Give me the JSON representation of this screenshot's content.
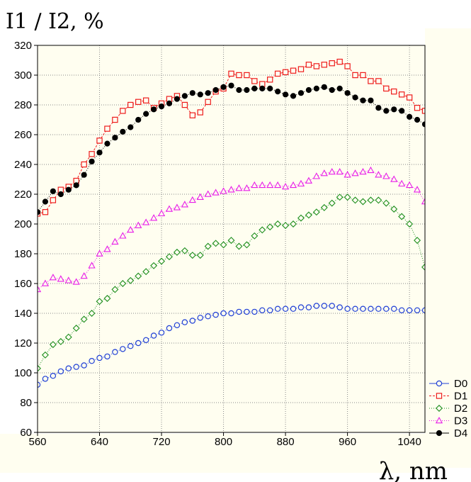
{
  "chart_data": {
    "type": "scatter",
    "title": "",
    "ylabel": "I1 / I2, %",
    "xlabel": "λ, nm",
    "xlim": [
      560,
      1060
    ],
    "ylim": [
      60,
      320
    ],
    "xticks": [
      560,
      640,
      720,
      800,
      880,
      960,
      1040
    ],
    "yticks": [
      60,
      80,
      100,
      120,
      140,
      160,
      180,
      200,
      220,
      240,
      260,
      280,
      300,
      320
    ],
    "grid": true,
    "legend_position": "right-bottom",
    "colors": {
      "plot_background": "#fffef0",
      "grid": "#8a8a8a"
    },
    "series": [
      {
        "name": "D0",
        "color": "#1f3fd6",
        "marker": "circle-open",
        "line": "dotted",
        "x": [
          560,
          570,
          580,
          590,
          600,
          610,
          620,
          630,
          640,
          650,
          660,
          670,
          680,
          690,
          700,
          710,
          720,
          730,
          740,
          750,
          760,
          770,
          780,
          790,
          800,
          810,
          820,
          830,
          840,
          850,
          860,
          870,
          880,
          890,
          900,
          910,
          920,
          930,
          940,
          950,
          960,
          970,
          980,
          990,
          1000,
          1010,
          1020,
          1030,
          1040,
          1050,
          1060
        ],
        "y": [
          92,
          96,
          98,
          101,
          103,
          104,
          105,
          108,
          110,
          111,
          114,
          116,
          118,
          120,
          122,
          125,
          127,
          130,
          132,
          134,
          135,
          137,
          138,
          139,
          140,
          140,
          141,
          141,
          141,
          142,
          142,
          143,
          143,
          143,
          144,
          144,
          145,
          145,
          145,
          144,
          143,
          143,
          143,
          143,
          143,
          143,
          143,
          142,
          142,
          142,
          142
        ]
      },
      {
        "name": "D1",
        "color": "#ee1c1c",
        "marker": "square-open",
        "line": "dashed",
        "x": [
          560,
          570,
          580,
          590,
          600,
          610,
          620,
          630,
          640,
          650,
          660,
          670,
          680,
          690,
          700,
          710,
          720,
          730,
          740,
          750,
          760,
          770,
          780,
          790,
          800,
          810,
          820,
          830,
          840,
          850,
          860,
          870,
          880,
          890,
          900,
          910,
          920,
          930,
          940,
          950,
          960,
          970,
          980,
          990,
          1000,
          1010,
          1020,
          1030,
          1040,
          1050,
          1060
        ],
        "y": [
          207,
          208,
          216,
          223,
          225,
          229,
          240,
          247,
          256,
          264,
          270,
          276,
          280,
          282,
          283,
          278,
          281,
          284,
          286,
          280,
          273,
          275,
          282,
          289,
          291,
          301,
          300,
          300,
          296,
          294,
          297,
          301,
          302,
          303,
          304,
          307,
          306,
          307,
          308,
          309,
          306,
          300,
          300,
          296,
          296,
          291,
          289,
          287,
          285,
          278,
          276
        ]
      },
      {
        "name": "D2",
        "color": "#1f8f1f",
        "marker": "diamond-open",
        "line": "dotted",
        "x": [
          560,
          570,
          580,
          590,
          600,
          610,
          620,
          630,
          640,
          650,
          660,
          670,
          680,
          690,
          700,
          710,
          720,
          730,
          740,
          750,
          760,
          770,
          780,
          790,
          800,
          810,
          820,
          830,
          840,
          850,
          860,
          870,
          880,
          890,
          900,
          910,
          920,
          930,
          940,
          950,
          960,
          970,
          980,
          990,
          1000,
          1010,
          1020,
          1030,
          1040,
          1050,
          1060
        ],
        "y": [
          103,
          112,
          119,
          121,
          124,
          130,
          136,
          140,
          148,
          150,
          156,
          160,
          162,
          165,
          168,
          172,
          175,
          178,
          181,
          182,
          179,
          179,
          185,
          187,
          186,
          189,
          185,
          186,
          192,
          196,
          198,
          200,
          199,
          200,
          204,
          206,
          208,
          211,
          214,
          218,
          218,
          216,
          215,
          216,
          216,
          214,
          210,
          205,
          200,
          189,
          171
        ]
      },
      {
        "name": "D3",
        "color": "#e81ee8",
        "marker": "triangle-open",
        "line": "dotted",
        "x": [
          560,
          570,
          580,
          590,
          600,
          610,
          620,
          630,
          640,
          650,
          660,
          670,
          680,
          690,
          700,
          710,
          720,
          730,
          740,
          750,
          760,
          770,
          780,
          790,
          800,
          810,
          820,
          830,
          840,
          850,
          860,
          870,
          880,
          890,
          900,
          910,
          920,
          930,
          940,
          950,
          960,
          970,
          980,
          990,
          1000,
          1010,
          1020,
          1030,
          1040,
          1050,
          1060
        ],
        "y": [
          156,
          160,
          164,
          163,
          162,
          161,
          165,
          172,
          180,
          183,
          188,
          192,
          196,
          199,
          201,
          204,
          207,
          210,
          211,
          213,
          216,
          218,
          220,
          221,
          222,
          223,
          224,
          224,
          226,
          226,
          226,
          226,
          225,
          226,
          227,
          229,
          232,
          234,
          235,
          235,
          233,
          234,
          235,
          236,
          233,
          232,
          230,
          227,
          226,
          223,
          215
        ]
      },
      {
        "name": "D4",
        "color": "#000000",
        "marker": "circle-filled",
        "line": "dotted",
        "x": [
          560,
          570,
          580,
          590,
          600,
          610,
          620,
          630,
          640,
          650,
          660,
          670,
          680,
          690,
          700,
          710,
          720,
          730,
          740,
          750,
          760,
          770,
          780,
          790,
          800,
          810,
          820,
          830,
          840,
          850,
          860,
          870,
          880,
          890,
          900,
          910,
          920,
          930,
          940,
          950,
          960,
          970,
          980,
          990,
          1000,
          1010,
          1020,
          1030,
          1040,
          1050,
          1060
        ],
        "y": [
          208,
          215,
          222,
          220,
          223,
          226,
          233,
          242,
          248,
          254,
          258,
          262,
          265,
          270,
          274,
          277,
          279,
          281,
          284,
          286,
          288,
          287,
          288,
          290,
          292,
          293,
          290,
          290,
          291,
          291,
          291,
          289,
          287,
          286,
          288,
          290,
          291,
          292,
          290,
          291,
          288,
          285,
          283,
          283,
          278,
          276,
          277,
          276,
          272,
          270,
          267
        ]
      }
    ]
  }
}
